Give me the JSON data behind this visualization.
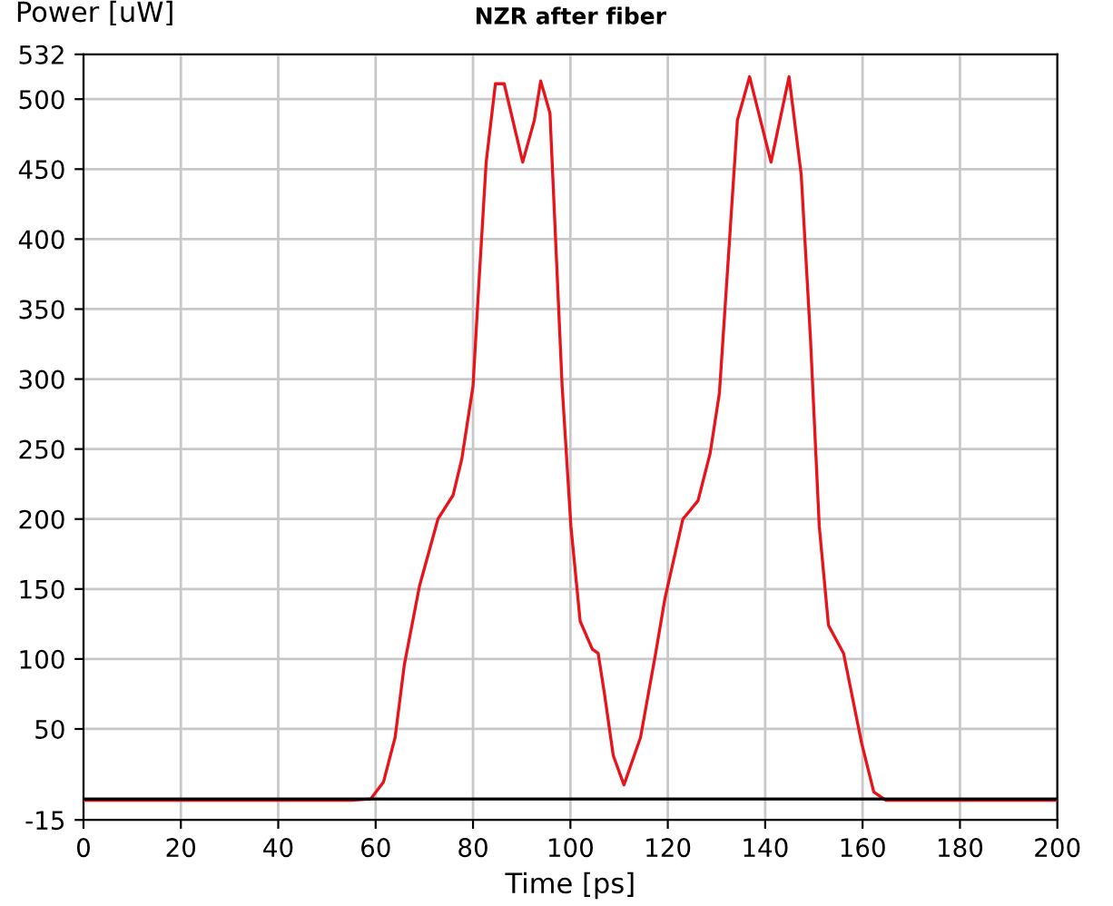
{
  "chart_data": {
    "type": "line",
    "title": "NZR after fiber",
    "xlabel": "Time [ps]",
    "ylabel": "Power [uW]",
    "xlim": [
      0,
      200
    ],
    "xticks": [
      0,
      20,
      40,
      60,
      80,
      100,
      120,
      140,
      160,
      180,
      200
    ],
    "ylim": [
      -15,
      532
    ],
    "yticks": [
      -15,
      50,
      100,
      150,
      200,
      250,
      300,
      350,
      400,
      450,
      500,
      532
    ],
    "grid": true,
    "marker": "none",
    "line_style": "solid",
    "ref_lines": [
      {
        "axis": "y",
        "value": 0,
        "label": null,
        "color": "#000000"
      }
    ],
    "series": [
      {
        "color": "#e8141b",
        "x": [
          0,
          20,
          40,
          55,
          59,
          61.6,
          64,
          65.9,
          69,
          72.8,
          75.9,
          77.7,
          80,
          81.2,
          82.7,
          84.6,
          86.4,
          90.2,
          92.6,
          93.9,
          95.8,
          98.3,
          100.1,
          102,
          104.5,
          105.7,
          107,
          108.8,
          111,
          114.4,
          117.5,
          119.4,
          123.1,
          126.2,
          128.7,
          130.6,
          132.5,
          134.3,
          136.8,
          141.2,
          144.9,
          147.4,
          149.3,
          151.1,
          153,
          156.1,
          159.8,
          162.3,
          164.8,
          180,
          200
        ],
        "values": [
          -1,
          -1,
          -1,
          -1,
          0,
          12,
          44,
          96,
          152,
          200,
          217,
          243,
          295,
          368,
          455,
          511,
          511,
          455,
          485,
          513,
          490,
          295,
          195,
          127,
          107,
          104,
          75,
          31,
          10,
          44,
          104,
          143,
          200,
          213,
          247,
          290,
          390,
          485,
          516,
          455,
          516,
          446,
          329,
          195,
          124,
          104,
          40,
          5,
          -1,
          -1,
          -1
        ]
      }
    ]
  }
}
